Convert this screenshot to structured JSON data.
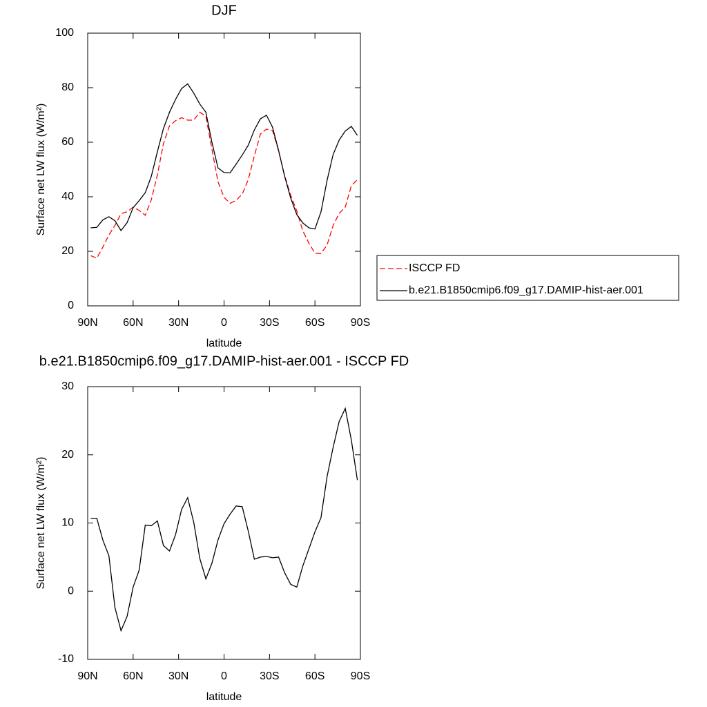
{
  "chart_data": [
    {
      "type": "line",
      "title": "DJF",
      "x_label": "latitude",
      "y_label": "Surface net LW flux (W/m²)",
      "x": [
        88,
        84,
        80,
        76,
        72,
        68,
        64,
        60,
        56,
        52,
        48,
        44,
        40,
        36,
        32,
        28,
        24,
        20,
        16,
        12,
        8,
        4,
        0,
        -4,
        -8,
        -12,
        -16,
        -20,
        -24,
        -28,
        -32,
        -36,
        -40,
        -44,
        -48,
        -52,
        -56,
        -60,
        -64,
        -68,
        -72,
        -76,
        -80,
        -84,
        -88
      ],
      "xlim": [
        90,
        -90
      ],
      "xticks": [
        {
          "value": 90,
          "label": "90N"
        },
        {
          "value": 60,
          "label": "60N"
        },
        {
          "value": 30,
          "label": "30N"
        },
        0,
        {
          "value": -30,
          "label": "30S"
        },
        {
          "value": -60,
          "label": "60S"
        },
        {
          "value": -90,
          "label": "90S"
        }
      ],
      "ylim": [
        0,
        100
      ],
      "yticks": [
        0,
        20,
        40,
        60,
        80,
        100
      ],
      "legend": "right",
      "series": [
        {
          "name": "ISCCP FD",
          "color": "#ff0000",
          "dashed": true,
          "values": [
            18.4,
            17.5,
            21.5,
            26,
            29.5,
            33.8,
            34.5,
            36.2,
            35,
            33.2,
            38.9,
            48,
            59.5,
            66,
            67.9,
            69,
            68.1,
            68.1,
            71,
            69.5,
            57.5,
            45.5,
            39.8,
            37.6,
            38.7,
            41,
            46.3,
            55,
            63,
            64.8,
            64.3,
            56.8,
            47.7,
            40.5,
            34.8,
            27.5,
            23,
            19.3,
            19.2,
            22.3,
            29.5,
            33.9,
            36.2,
            44,
            46.3
          ]
        },
        {
          "name": "b.e21.B1850cmip6.f09_g17.DAMIP-hist-aer.001",
          "color": "#000000",
          "dashed": false,
          "values": [
            28.6,
            28.8,
            31.5,
            32.7,
            31.2,
            27.6,
            30.5,
            36,
            38.6,
            41.5,
            47.5,
            56.5,
            65,
            71,
            75.7,
            79.7,
            81.4,
            78,
            74,
            71,
            60,
            50.6,
            48.9,
            48.8,
            52,
            55.3,
            58.9,
            64.5,
            68.6,
            69.9,
            65.5,
            57,
            47.5,
            39.5,
            33.5,
            30.4,
            28.6,
            28.2,
            34.5,
            46,
            55.5,
            60.8,
            64.1,
            65.8,
            62.5
          ]
        }
      ]
    },
    {
      "type": "line",
      "title": "b.e21.B1850cmip6.f09_g17.DAMIP-hist-aer.001 - ISCCP FD",
      "x_label": "latitude",
      "y_label": "Surface net LW flux (W/m²)",
      "x": [
        88,
        84,
        80,
        76,
        72,
        68,
        64,
        60,
        56,
        52,
        48,
        44,
        40,
        36,
        32,
        28,
        24,
        20,
        16,
        12,
        8,
        4,
        0,
        -4,
        -8,
        -12,
        -16,
        -20,
        -24,
        -28,
        -32,
        -36,
        -40,
        -44,
        -48,
        -52,
        -56,
        -60,
        -64,
        -68,
        -72,
        -76,
        -80,
        -84,
        -88
      ],
      "xlim": [
        90,
        -90
      ],
      "xticks": [
        {
          "value": 90,
          "label": "90N"
        },
        {
          "value": 60,
          "label": "60N"
        },
        {
          "value": 30,
          "label": "30N"
        },
        0,
        {
          "value": -30,
          "label": "30S"
        },
        {
          "value": -60,
          "label": "60S"
        },
        {
          "value": -90,
          "label": "90S"
        }
      ],
      "ylim": [
        -10,
        30
      ],
      "yticks": [
        -10,
        0,
        10,
        20,
        30
      ],
      "series": [
        {
          "color": "#000000",
          "dashed": false,
          "values": [
            10.7,
            10.7,
            7.5,
            5.2,
            -2.4,
            -5.8,
            -3.7,
            0.6,
            3.1,
            9.7,
            9.6,
            10.3,
            6.7,
            5.9,
            8.3,
            12,
            13.7,
            10.1,
            4.8,
            1.8,
            4.1,
            7.5,
            9.9,
            11.3,
            12.5,
            12.4,
            8.8,
            4.7,
            5,
            5.1,
            4.9,
            5,
            2.7,
            1,
            0.6,
            3.7,
            6.2,
            8.7,
            10.8,
            16.8,
            21.1,
            24.9,
            26.8,
            22.2,
            16.3
          ]
        }
      ]
    }
  ]
}
